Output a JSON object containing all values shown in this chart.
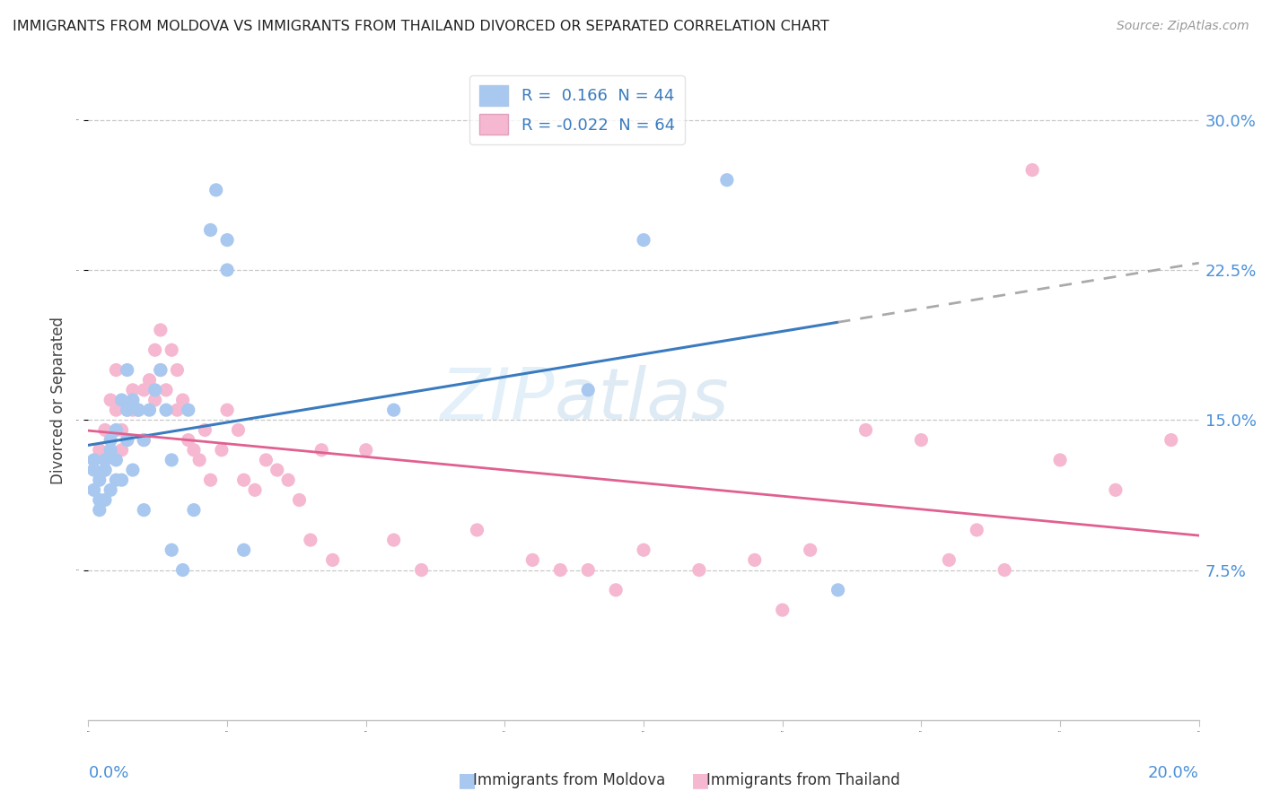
{
  "title": "IMMIGRANTS FROM MOLDOVA VS IMMIGRANTS FROM THAILAND DIVORCED OR SEPARATED CORRELATION CHART",
  "source": "Source: ZipAtlas.com",
  "ylabel": "Divorced or Separated",
  "ytick_labels": [
    "7.5%",
    "15.0%",
    "22.5%",
    "30.0%"
  ],
  "ytick_values": [
    0.075,
    0.15,
    0.225,
    0.3
  ],
  "xlim": [
    0.0,
    0.2
  ],
  "ylim": [
    0.0,
    0.32
  ],
  "legend_r1": "R =  0.166  N = 44",
  "legend_r2": "R = -0.022  N = 64",
  "color_moldova": "#a8c8f0",
  "color_thailand": "#f5b8d0",
  "trendline_moldova_color": "#3a7bbf",
  "trendline_thailand_color": "#e06090",
  "watermark_zip": "ZIP",
  "watermark_atlas": "atlas",
  "moldova_points": [
    [
      0.001,
      0.125
    ],
    [
      0.001,
      0.13
    ],
    [
      0.001,
      0.115
    ],
    [
      0.002,
      0.12
    ],
    [
      0.002,
      0.11
    ],
    [
      0.002,
      0.105
    ],
    [
      0.003,
      0.13
    ],
    [
      0.003,
      0.125
    ],
    [
      0.003,
      0.11
    ],
    [
      0.004,
      0.14
    ],
    [
      0.004,
      0.135
    ],
    [
      0.004,
      0.115
    ],
    [
      0.005,
      0.145
    ],
    [
      0.005,
      0.13
    ],
    [
      0.005,
      0.12
    ],
    [
      0.006,
      0.16
    ],
    [
      0.006,
      0.12
    ],
    [
      0.007,
      0.175
    ],
    [
      0.007,
      0.155
    ],
    [
      0.007,
      0.14
    ],
    [
      0.008,
      0.16
    ],
    [
      0.008,
      0.125
    ],
    [
      0.009,
      0.155
    ],
    [
      0.01,
      0.14
    ],
    [
      0.01,
      0.105
    ],
    [
      0.011,
      0.155
    ],
    [
      0.012,
      0.165
    ],
    [
      0.013,
      0.175
    ],
    [
      0.014,
      0.155
    ],
    [
      0.015,
      0.13
    ],
    [
      0.015,
      0.085
    ],
    [
      0.017,
      0.075
    ],
    [
      0.018,
      0.155
    ],
    [
      0.019,
      0.105
    ],
    [
      0.022,
      0.245
    ],
    [
      0.023,
      0.265
    ],
    [
      0.025,
      0.24
    ],
    [
      0.025,
      0.225
    ],
    [
      0.028,
      0.085
    ],
    [
      0.055,
      0.155
    ],
    [
      0.09,
      0.165
    ],
    [
      0.1,
      0.24
    ],
    [
      0.115,
      0.27
    ],
    [
      0.135,
      0.065
    ]
  ],
  "thailand_points": [
    [
      0.002,
      0.135
    ],
    [
      0.003,
      0.145
    ],
    [
      0.003,
      0.125
    ],
    [
      0.004,
      0.16
    ],
    [
      0.005,
      0.175
    ],
    [
      0.005,
      0.155
    ],
    [
      0.006,
      0.145
    ],
    [
      0.006,
      0.135
    ],
    [
      0.007,
      0.155
    ],
    [
      0.007,
      0.14
    ],
    [
      0.008,
      0.165
    ],
    [
      0.008,
      0.155
    ],
    [
      0.009,
      0.155
    ],
    [
      0.01,
      0.165
    ],
    [
      0.01,
      0.14
    ],
    [
      0.011,
      0.17
    ],
    [
      0.012,
      0.185
    ],
    [
      0.012,
      0.16
    ],
    [
      0.013,
      0.195
    ],
    [
      0.013,
      0.175
    ],
    [
      0.014,
      0.165
    ],
    [
      0.015,
      0.185
    ],
    [
      0.016,
      0.175
    ],
    [
      0.016,
      0.155
    ],
    [
      0.017,
      0.16
    ],
    [
      0.018,
      0.14
    ],
    [
      0.019,
      0.135
    ],
    [
      0.02,
      0.13
    ],
    [
      0.021,
      0.145
    ],
    [
      0.022,
      0.12
    ],
    [
      0.024,
      0.135
    ],
    [
      0.025,
      0.155
    ],
    [
      0.027,
      0.145
    ],
    [
      0.028,
      0.12
    ],
    [
      0.03,
      0.115
    ],
    [
      0.032,
      0.13
    ],
    [
      0.034,
      0.125
    ],
    [
      0.036,
      0.12
    ],
    [
      0.038,
      0.11
    ],
    [
      0.04,
      0.09
    ],
    [
      0.042,
      0.135
    ],
    [
      0.044,
      0.08
    ],
    [
      0.05,
      0.135
    ],
    [
      0.055,
      0.09
    ],
    [
      0.06,
      0.075
    ],
    [
      0.07,
      0.095
    ],
    [
      0.08,
      0.08
    ],
    [
      0.085,
      0.075
    ],
    [
      0.09,
      0.075
    ],
    [
      0.095,
      0.065
    ],
    [
      0.1,
      0.085
    ],
    [
      0.11,
      0.075
    ],
    [
      0.12,
      0.08
    ],
    [
      0.125,
      0.055
    ],
    [
      0.13,
      0.085
    ],
    [
      0.14,
      0.145
    ],
    [
      0.15,
      0.14
    ],
    [
      0.155,
      0.08
    ],
    [
      0.16,
      0.095
    ],
    [
      0.165,
      0.075
    ],
    [
      0.17,
      0.275
    ],
    [
      0.175,
      0.13
    ],
    [
      0.185,
      0.115
    ],
    [
      0.195,
      0.14
    ]
  ]
}
